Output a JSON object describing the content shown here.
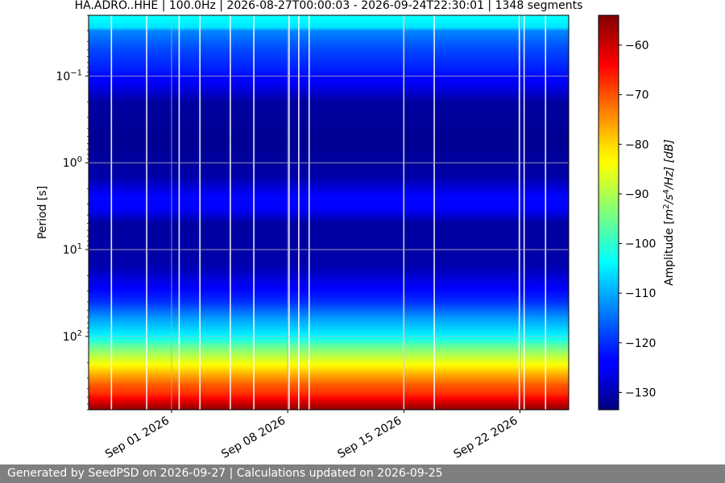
{
  "chart_data": {
    "type": "heatmap",
    "title": "HA.ADRO..HHE | 100.0Hz | 2026-08-27T00:00:03 - 2026-09-24T22:30:01 | 1348 segments",
    "ylabel": "Period [s]",
    "yscale": "log",
    "y_inverted": true,
    "ylim": [
      0.02,
      700
    ],
    "y_ticks": [
      {
        "value": 0.1,
        "base": "10",
        "exp": "−1"
      },
      {
        "value": 1,
        "base": "10",
        "exp": "0"
      },
      {
        "value": 10,
        "base": "10",
        "exp": "1"
      },
      {
        "value": 100,
        "base": "10",
        "exp": "2"
      }
    ],
    "x_type": "date",
    "xlim": [
      "2026-08-27T00:00:03",
      "2026-09-24T22:30:01"
    ],
    "x_ticks": [
      {
        "date": "2026-09-01",
        "label": "Sep 01 2026"
      },
      {
        "date": "2026-09-08",
        "label": "Sep 08 2026"
      },
      {
        "date": "2026-09-15",
        "label": "Sep 15 2026"
      },
      {
        "date": "2026-09-22",
        "label": "Sep 22 2026"
      }
    ],
    "grid": true,
    "colormap": "jet",
    "colorbar": {
      "label_prefix": "Amplitude [",
      "label_m": "m",
      "label_m_exp": "2",
      "label_s": "/s",
      "label_s_exp": "4",
      "label_suffix": "/Hz] [dB]",
      "range": [
        -133.5,
        -54
      ],
      "ticks": [
        {
          "value": -60,
          "label": "−60"
        },
        {
          "value": -70,
          "label": "−70"
        },
        {
          "value": -80,
          "label": "−80"
        },
        {
          "value": -90,
          "label": "−90"
        },
        {
          "value": -100,
          "label": "−100"
        },
        {
          "value": -110,
          "label": "−110"
        },
        {
          "value": -120,
          "label": "−120"
        },
        {
          "value": -130,
          "label": "−130"
        }
      ]
    },
    "period_profile": [
      {
        "period": 0.02,
        "db": -103
      },
      {
        "period": 0.028,
        "db": -106
      },
      {
        "period": 0.03,
        "db": -113
      },
      {
        "period": 0.05,
        "db": -118
      },
      {
        "period": 0.08,
        "db": -121
      },
      {
        "period": 0.13,
        "db": -125
      },
      {
        "period": 0.2,
        "db": -131
      },
      {
        "period": 0.6,
        "db": -132
      },
      {
        "period": 1.5,
        "db": -130
      },
      {
        "period": 2.5,
        "db": -123
      },
      {
        "period": 3.5,
        "db": -124
      },
      {
        "period": 5,
        "db": -131
      },
      {
        "period": 15,
        "db": -130
      },
      {
        "period": 25,
        "db": -125
      },
      {
        "period": 40,
        "db": -120
      },
      {
        "period": 60,
        "db": -112
      },
      {
        "period": 100,
        "db": -104
      },
      {
        "period": 130,
        "db": -96
      },
      {
        "period": 170,
        "db": -89
      },
      {
        "period": 220,
        "db": -83
      },
      {
        "period": 280,
        "db": -77
      },
      {
        "period": 380,
        "db": -70
      },
      {
        "period": 450,
        "db": -68
      },
      {
        "period": 700,
        "db": -55
      }
    ],
    "data_gaps": [
      "2026-08-28T09:00:00",
      "2026-08-30T12:00:00",
      "2026-09-01T11:00:00",
      "2026-09-02T17:00:00",
      "2026-09-04T13:00:00",
      "2026-09-05T23:00:00",
      "2026-09-08T02:00:00",
      "2026-09-08T16:00:00",
      "2026-09-09T07:00:00",
      "2026-09-15T00:00:00",
      "2026-09-16T20:00:00",
      "2026-09-21T23:00:00",
      "2026-09-22T06:00:00",
      "2026-09-23T13:00:00"
    ]
  },
  "footer": {
    "text": "Generated by SeedPSD on 2026-09-27 | Calculations updated on 2026-09-25"
  }
}
